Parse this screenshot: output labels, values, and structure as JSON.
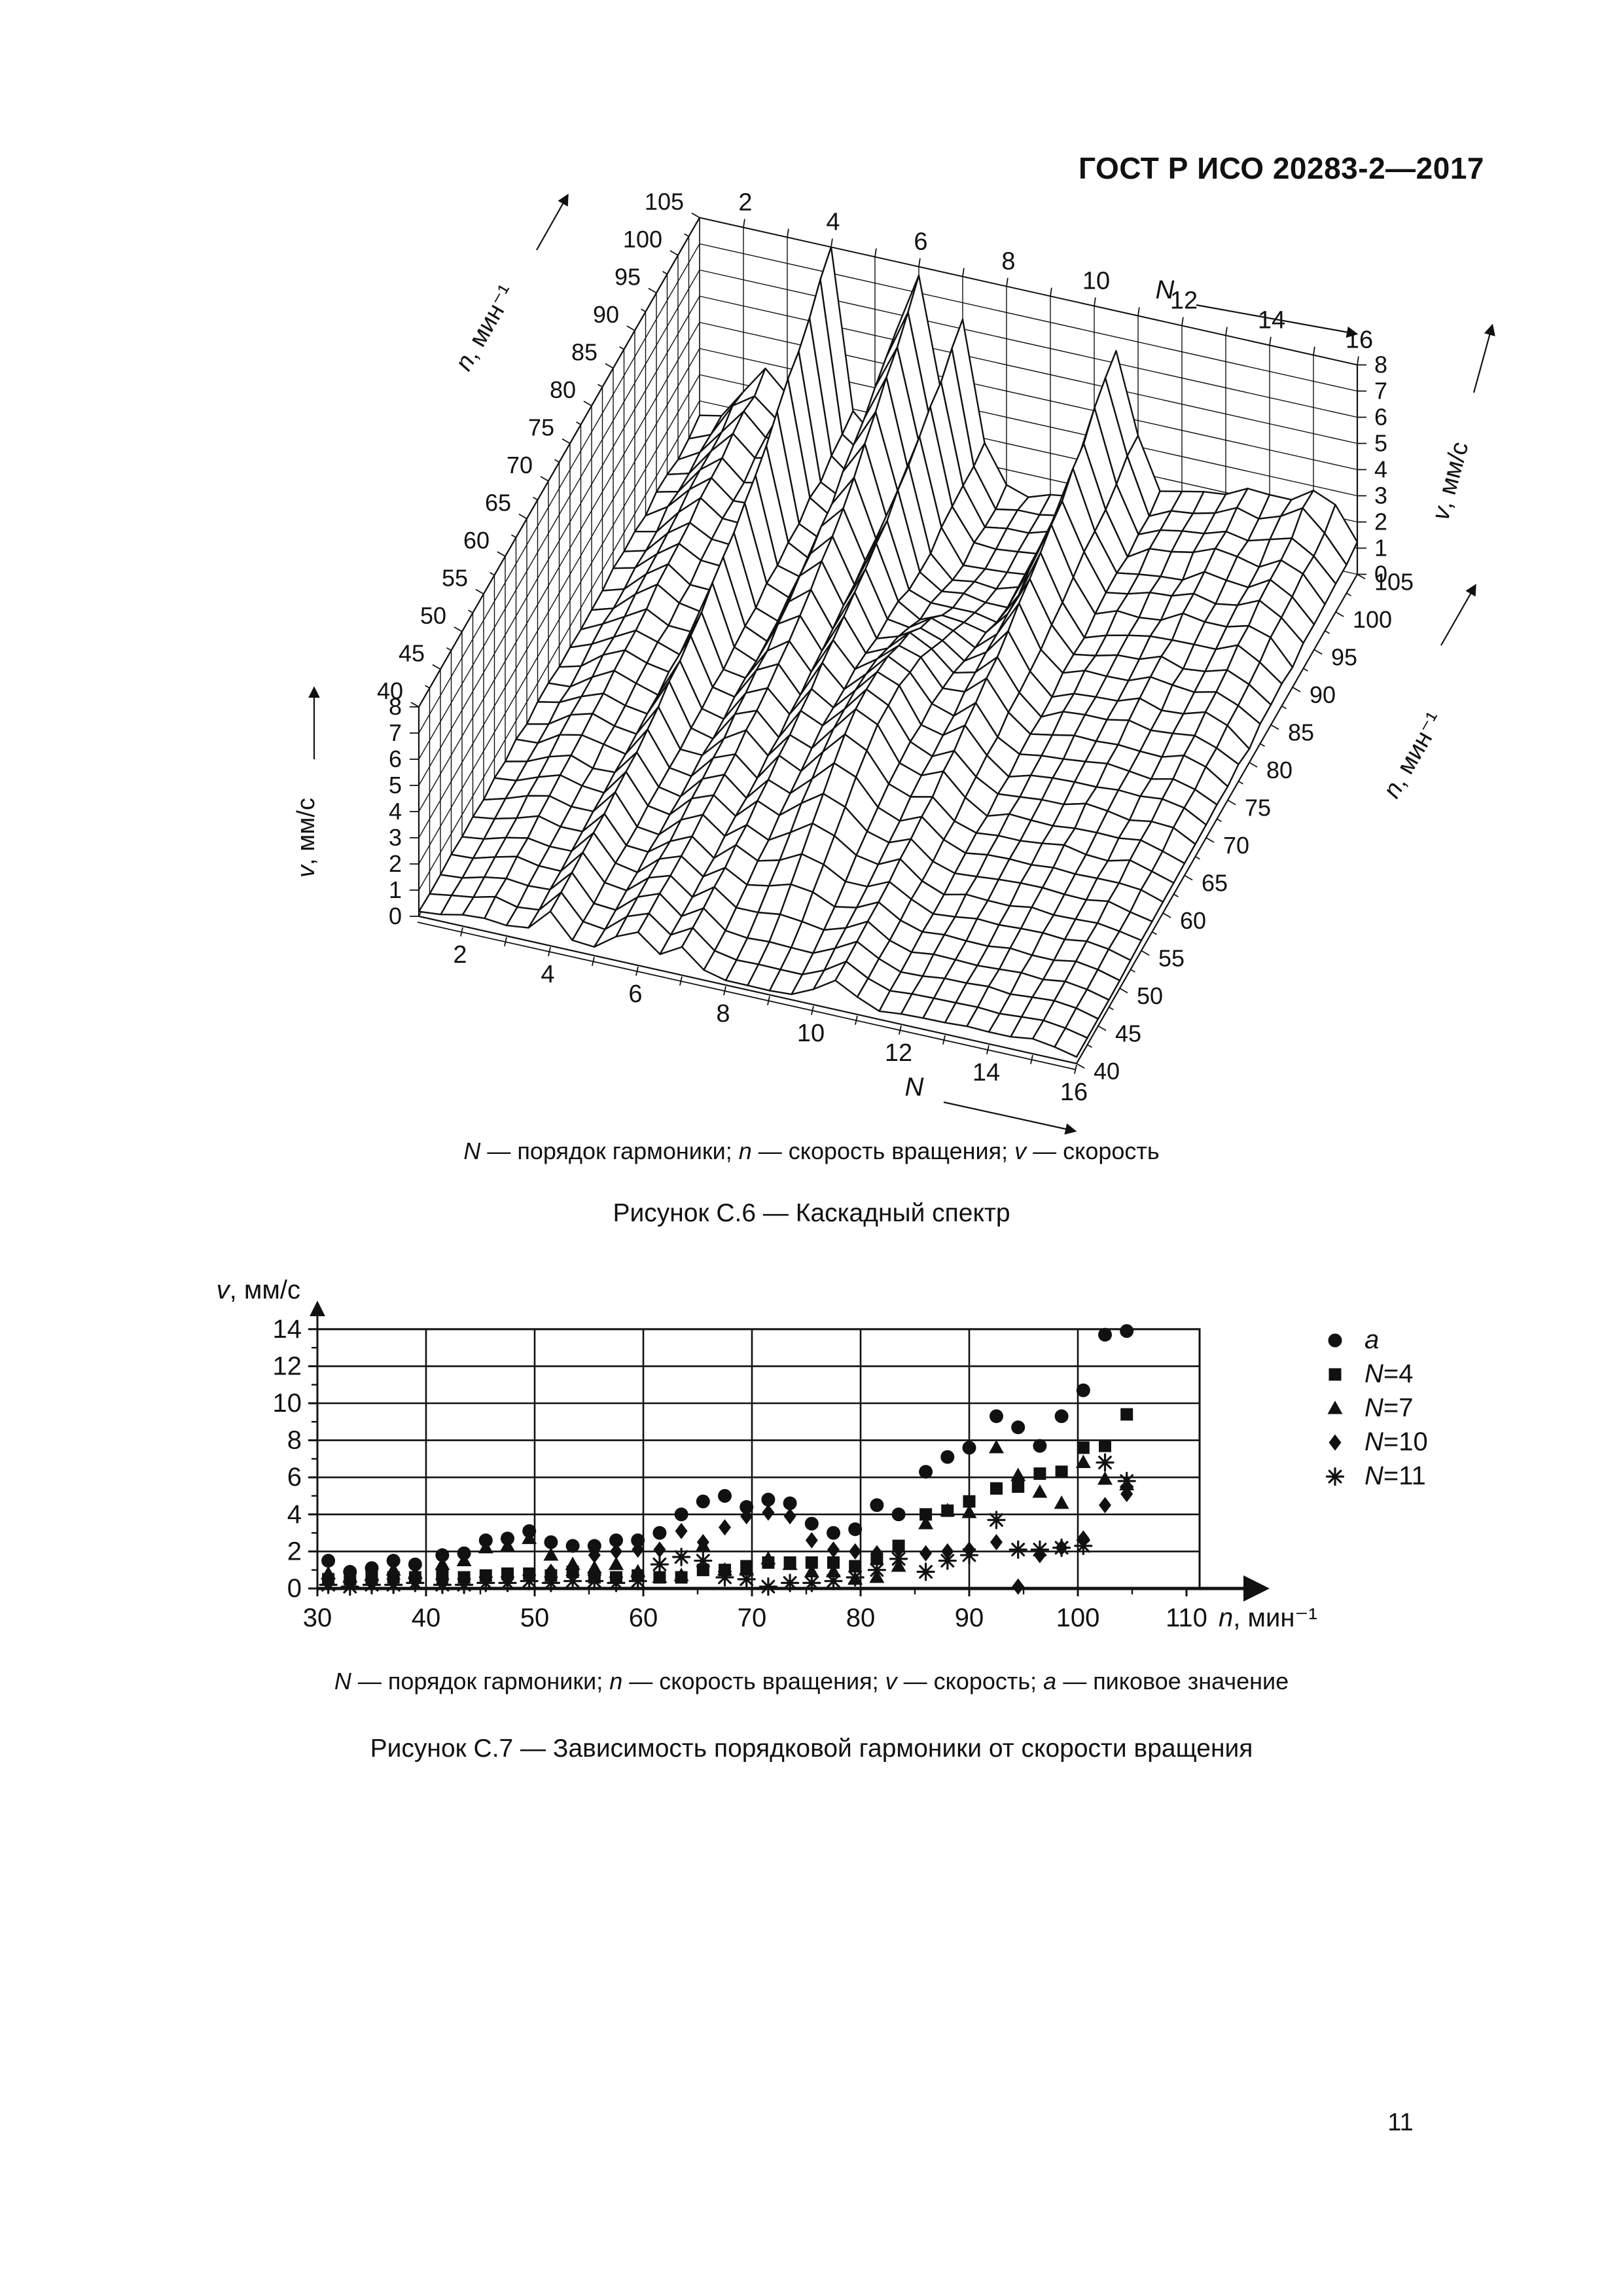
{
  "page": {
    "header_title": "ГОСТ Р ИСО 20283-2—2017",
    "page_number": "11"
  },
  "figure_c6": {
    "caption_rich": [
      {
        "t": "N",
        "i": 1
      },
      {
        "t": " — порядок гармоники;  "
      },
      {
        "t": "n",
        "i": 1
      },
      {
        "t": " — скорость вращения;  "
      },
      {
        "t": "v",
        "i": 1
      },
      {
        "t": " — скорость"
      }
    ],
    "title": "Рисунок С.6 — Каскадный спектр"
  },
  "figure_c7": {
    "caption_rich": [
      {
        "t": "N",
        "i": 1
      },
      {
        "t": " — порядок гармоники;  "
      },
      {
        "t": "n",
        "i": 1
      },
      {
        "t": " — скорость вращения; "
      },
      {
        "t": "v",
        "i": 1
      },
      {
        "t": " — скорость; "
      },
      {
        "t": "a",
        "i": 1
      },
      {
        "t": " — пиковое значение"
      }
    ],
    "title": "Рисунок С.7 — Зависимость порядковой гармоники от скорости вращения"
  },
  "chart_data": [
    {
      "type": "3d-cascade-surface",
      "description": "Каскадный спектр вибрации: спектры v(N) для последовательных скоростей вращения n",
      "N_axis": {
        "label_rich": [
          {
            "t": "N",
            "i": 1
          }
        ],
        "range": [
          1,
          16
        ],
        "labeled_ticks": [
          2,
          4,
          6,
          8,
          10,
          12,
          14,
          16
        ],
        "minor_step": 1
      },
      "n_axis": {
        "label_rich": [
          {
            "t": "n",
            "i": 1
          },
          {
            "t": ", мин⁻¹"
          }
        ],
        "range": [
          40,
          105
        ],
        "labeled_ticks": [
          40,
          45,
          50,
          55,
          60,
          65,
          70,
          75,
          80,
          85,
          90,
          95,
          100,
          105
        ],
        "minor_step": 2.5
      },
      "v_axis": {
        "label_rich": [
          {
            "t": "v",
            "i": 1
          },
          {
            "t": ", мм/с"
          }
        ],
        "range": [
          0,
          8
        ],
        "labeled_ticks": [
          0,
          1,
          2,
          3,
          4,
          5,
          6,
          7,
          8
        ]
      },
      "mesh": {
        "N_step": 0.5,
        "n_step": 2.5
      },
      "surface_model": {
        "base": 0.12,
        "jitter": 0.3,
        "cap": 8,
        "ridges": [
          {
            "center": 2.5,
            "sigma": 0.55,
            "amp": 2.4,
            "power": 1.3,
            "shape": "pow"
          },
          {
            "center": 4.0,
            "sigma": 0.28,
            "amp": 7.8,
            "power": 2.6,
            "shape": "pow"
          },
          {
            "center": 5.5,
            "sigma": 0.3,
            "amp": 3.5,
            "power": 2.5,
            "shape": "pow"
          },
          {
            "center": 6.0,
            "sigma": 0.3,
            "amp": 6.6,
            "power": 3.0,
            "shape": "pow"
          },
          {
            "center": 7.0,
            "sigma": 0.3,
            "amp": 6.0,
            "power": 2.2,
            "shape": "pow"
          },
          {
            "center": 8.6,
            "sigma": 0.75,
            "amp": 3.4,
            "shape": "sin"
          },
          {
            "center": 10.5,
            "sigma": 0.42,
            "amp": 6.2,
            "power": 2.3,
            "shape": "pow"
          },
          {
            "center": 12.2,
            "sigma": 0.6,
            "amp": 1.5,
            "power": 1.2,
            "shape": "pow"
          },
          {
            "center": 13.6,
            "sigma": 0.55,
            "amp": 2.0,
            "power": 1.6,
            "shape": "pow"
          },
          {
            "center": 15.1,
            "sigma": 0.6,
            "amp": 2.6,
            "power": 2.0,
            "shape": "pow"
          }
        ]
      }
    },
    {
      "type": "scatter",
      "description": "Зависимость порядковой гармоники от скорости вращения",
      "x_axis": {
        "label_rich": [
          {
            "t": "n",
            "i": 1
          },
          {
            "t": ", мин⁻¹"
          }
        ],
        "range": [
          30,
          110
        ],
        "labeled_ticks": [
          30,
          40,
          50,
          60,
          70,
          80,
          90,
          100,
          110
        ],
        "minor_step": 5,
        "grid_lines": [
          40,
          50,
          60,
          70,
          80,
          90,
          100
        ]
      },
      "y_axis": {
        "label_rich": [
          {
            "t": "v",
            "i": 1
          },
          {
            "t": ", мм/с"
          }
        ],
        "range": [
          0,
          14
        ],
        "labeled_ticks": [
          0,
          2,
          4,
          6,
          8,
          10,
          12,
          14
        ],
        "minor_step": 1,
        "grid_lines": [
          2,
          4,
          6,
          8,
          10,
          12,
          14
        ]
      },
      "n_values": [
        31,
        33,
        35,
        37,
        39,
        41.5,
        43.5,
        45.5,
        47.5,
        49.5,
        51.5,
        53.5,
        55.5,
        57.5,
        59.5,
        61.5,
        63.5,
        65.5,
        67.5,
        69.5,
        71.5,
        73.5,
        75.5,
        77.5,
        79.5,
        81.5,
        83.5,
        86,
        88,
        90,
        92.5,
        94.5,
        96.5,
        98.5,
        100.5,
        102.5,
        104.5
      ],
      "series": [
        {
          "name_rich": [
            {
              "t": "a",
              "i": 1
            }
          ],
          "marker": "circle",
          "values": [
            1.5,
            0.9,
            1.1,
            1.5,
            1.3,
            1.8,
            1.9,
            2.6,
            2.7,
            3.1,
            2.5,
            2.3,
            2.3,
            2.6,
            2.6,
            3.0,
            4.0,
            4.7,
            5.0,
            4.4,
            4.8,
            4.6,
            3.5,
            3.0,
            3.2,
            4.5,
            4.0,
            6.3,
            7.1,
            7.6,
            9.3,
            8.7,
            7.7,
            9.3,
            10.7,
            13.7,
            13.9
          ]
        },
        {
          "name_rich": [
            {
              "t": "N",
              "i": 1
            },
            {
              "t": "=4"
            }
          ],
          "marker": "square",
          "values": [
            0.5,
            0.5,
            0.6,
            0.6,
            0.6,
            0.7,
            0.6,
            0.7,
            0.8,
            0.8,
            0.7,
            0.9,
            0.6,
            0.6,
            0.7,
            0.6,
            0.6,
            1.0,
            1.0,
            1.2,
            1.4,
            1.4,
            1.4,
            1.4,
            1.2,
            1.6,
            2.3,
            4.0,
            4.2,
            4.7,
            5.4,
            5.5,
            6.2,
            6.3,
            7.6,
            7.7,
            9.4
          ]
        },
        {
          "name_rich": [
            {
              "t": "N",
              "i": 1
            },
            {
              "t": "=7"
            }
          ],
          "marker": "triangle",
          "values": [
            0.8,
            0.6,
            0.7,
            1.0,
            0.8,
            1.3,
            1.5,
            2.2,
            2.3,
            2.7,
            1.8,
            1.3,
            1.1,
            1.3,
            0.9,
            0.6,
            0.7,
            2.3,
            1.0,
            1.0,
            1.6,
            1.3,
            0.9,
            0.9,
            0.5,
            0.6,
            1.2,
            3.5,
            4.2,
            4.1,
            7.6,
            6.1,
            5.2,
            4.6,
            6.8,
            5.9,
            5.6
          ]
        },
        {
          "name_rich": [
            {
              "t": "N",
              "i": 1
            },
            {
              "t": "=10"
            }
          ],
          "marker": "diamond",
          "values": [
            0.3,
            0.3,
            0.3,
            0.4,
            0.4,
            0.3,
            0.4,
            0.5,
            0.5,
            0.6,
            0.9,
            1.1,
            1.8,
            2.0,
            2.1,
            2.1,
            3.1,
            2.5,
            3.3,
            3.9,
            4.1,
            3.9,
            2.6,
            2.1,
            2.0,
            1.9,
            2.1,
            1.9,
            2.0,
            2.1,
            2.5,
            0.1,
            1.8,
            2.2,
            2.7,
            4.5,
            5.1
          ]
        },
        {
          "name_rich": [
            {
              "t": "N",
              "i": 1
            },
            {
              "t": "=11"
            }
          ],
          "marker": "asterisk",
          "values": [
            0.2,
            0.1,
            0.2,
            0.2,
            0.3,
            0.2,
            0.2,
            0.3,
            0.3,
            0.4,
            0.3,
            0.4,
            0.4,
            0.3,
            0.4,
            1.3,
            1.7,
            1.5,
            0.6,
            0.5,
            0.1,
            0.3,
            0.3,
            0.4,
            0.6,
            1.0,
            1.6,
            0.9,
            1.5,
            1.8,
            3.7,
            2.1,
            2.1,
            2.2,
            2.3,
            6.8,
            5.8
          ]
        }
      ],
      "legend_position": "right"
    }
  ]
}
